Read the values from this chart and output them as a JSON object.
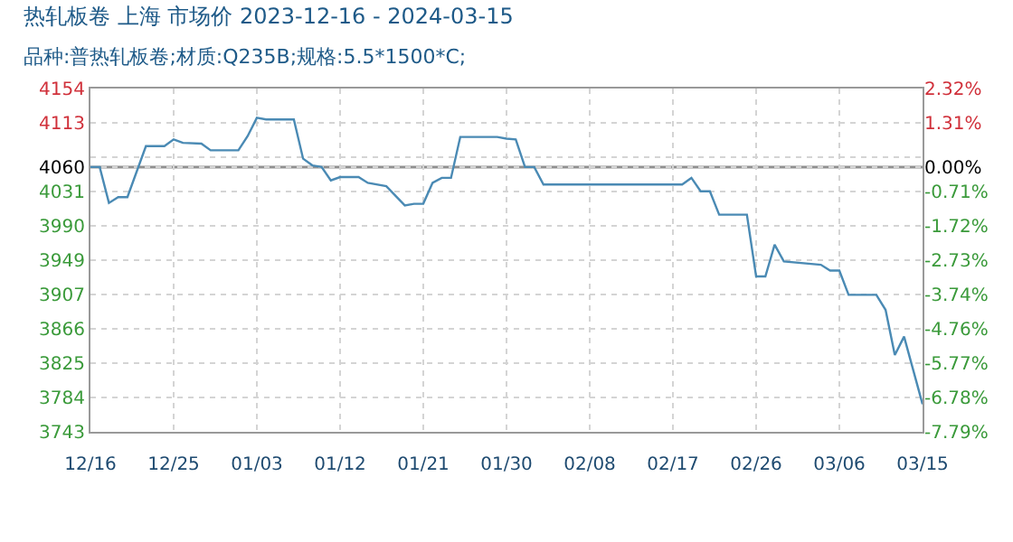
{
  "chart_data": {
    "type": "line",
    "title": "热轧板卷 上海 市场价 2023-12-16 - 2024-03-15",
    "subtitle": "品种:普热轧板卷;材质:Q235B;规格:5.5*1500*C;",
    "x": [
      "2023-12-16",
      "2023-12-17",
      "2023-12-18",
      "2023-12-19",
      "2023-12-20",
      "2023-12-22",
      "2023-12-24",
      "2023-12-25",
      "2023-12-26",
      "2023-12-28",
      "2023-12-29",
      "2024-01-01",
      "2024-01-02",
      "2024-01-03",
      "2024-01-04",
      "2024-01-07",
      "2024-01-08",
      "2024-01-09",
      "2024-01-10",
      "2024-01-11",
      "2024-01-12",
      "2024-01-14",
      "2024-01-15",
      "2024-01-17",
      "2024-01-19",
      "2024-01-20",
      "2024-01-21",
      "2024-01-22",
      "2024-01-23",
      "2024-01-24",
      "2024-01-25",
      "2024-01-29",
      "2024-01-30",
      "2024-01-31",
      "2024-02-01",
      "2024-02-02",
      "2024-02-03",
      "2024-02-18",
      "2024-02-19",
      "2024-02-20",
      "2024-02-21",
      "2024-02-22",
      "2024-02-25",
      "2024-02-26",
      "2024-02-27",
      "2024-02-28",
      "2024-02-29",
      "2024-03-04",
      "2024-03-05",
      "2024-03-06",
      "2024-03-07",
      "2024-03-10",
      "2024-03-11",
      "2024-03-12",
      "2024-03-13",
      "2024-03-15"
    ],
    "series": [
      {
        "color": "#4a8ab4",
        "values": [
          4060,
          4060,
          4017,
          4024,
          4024,
          4085,
          4085,
          4093,
          4089,
          4088,
          4080,
          4080,
          4097,
          4119,
          4117,
          4117,
          4070,
          4062,
          4060,
          4044,
          4048,
          4048,
          4041,
          4037,
          4014,
          4016,
          4016,
          4041,
          4047,
          4047,
          4096,
          4096,
          4094,
          4093,
          4060,
          4060,
          4039,
          4039,
          4047,
          4031,
          4031,
          4003,
          4003,
          3929,
          3929,
          3967,
          3947,
          3943,
          3936,
          3936,
          3907,
          3907,
          3889,
          3835,
          3857,
          3776
        ]
      }
    ],
    "xlim": [
      "2023-12-16",
      "2024-03-15"
    ],
    "xticks": [
      {
        "value": "2023-12-16",
        "label": "12/16"
      },
      {
        "value": "2023-12-25",
        "label": "12/25"
      },
      {
        "value": "2024-01-03",
        "label": "01/03"
      },
      {
        "value": "2024-01-12",
        "label": "01/12"
      },
      {
        "value": "2024-01-21",
        "label": "01/21"
      },
      {
        "value": "2024-01-30",
        "label": "01/30"
      },
      {
        "value": "2024-02-08",
        "label": "02/08"
      },
      {
        "value": "2024-02-17",
        "label": "02/17"
      },
      {
        "value": "2024-02-26",
        "label": "02/26"
      },
      {
        "value": "2024-03-06",
        "label": "03/06"
      },
      {
        "value": "2024-03-15",
        "label": "03/15"
      }
    ],
    "ylim": [
      3743,
      4154
    ],
    "yticks": [
      4154,
      4113,
      {
        "value": 4072,
        "label": null
      },
      4060,
      4031,
      3990,
      3949,
      3907,
      3866,
      3825,
      3784,
      3743
    ],
    "y2lim": [
      -7.79,
      2.32
    ],
    "y2ticks": [
      {
        "value": 2.32,
        "label": "2.32%"
      },
      {
        "value": 1.31,
        "label": "1.31%"
      },
      {
        "value": 0,
        "label": "0.00%"
      },
      {
        "value": -0.71,
        "label": "-0.71%"
      },
      {
        "value": -1.72,
        "label": "-1.72%"
      },
      {
        "value": -2.73,
        "label": "-2.73%"
      },
      {
        "value": -3.74,
        "label": "-3.74%"
      },
      {
        "value": -4.76,
        "label": "-4.76%"
      },
      {
        "value": -5.77,
        "label": "-5.77%"
      },
      {
        "value": -6.78,
        "label": "-6.78%"
      },
      {
        "value": -7.79,
        "label": "-7.79%"
      }
    ],
    "ref_lines": [
      {
        "axis": "y",
        "value": 4060,
        "color": "#909090"
      }
    ],
    "grid": true,
    "marker": "none",
    "line_style": "solid"
  }
}
